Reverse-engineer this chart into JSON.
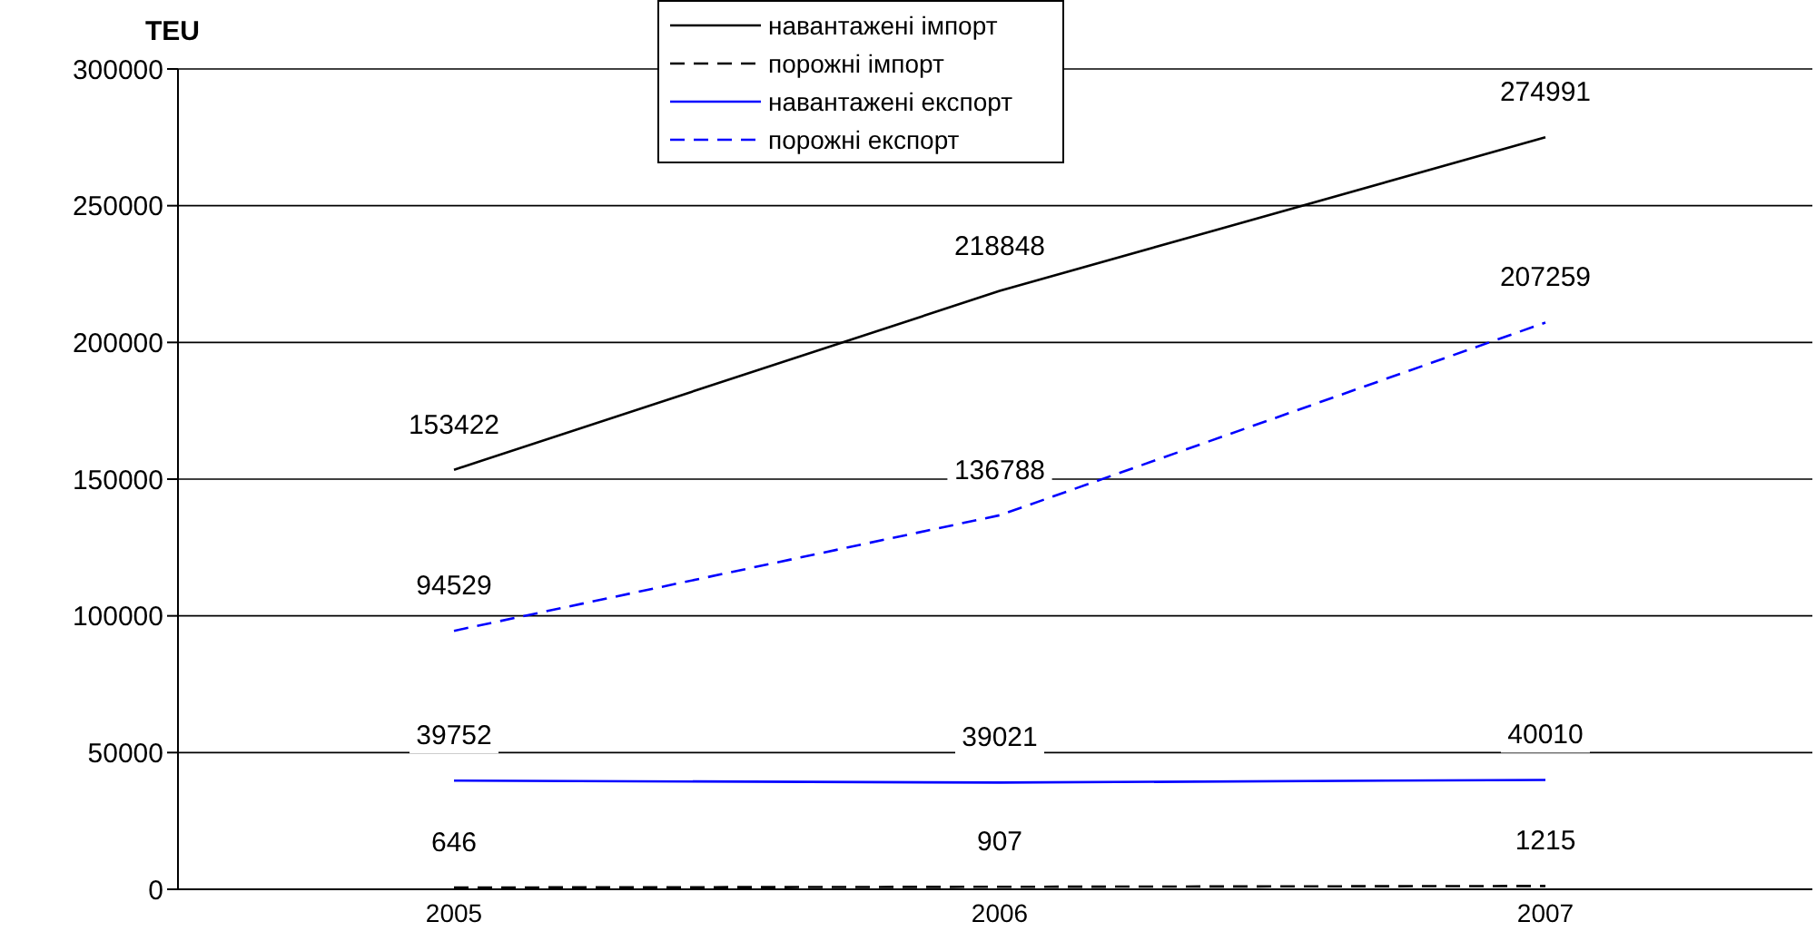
{
  "chart_data": {
    "type": "line",
    "ylabel": "TEU",
    "categories": [
      "2005",
      "2006",
      "2007"
    ],
    "series": [
      {
        "name": "навантажені імпорт",
        "color": "#000000",
        "line_style": "solid",
        "values": [
          153422,
          218848,
          274991
        ]
      },
      {
        "name": "порожні імпорт",
        "color": "#000000",
        "line_style": "dashed",
        "values": [
          646,
          907,
          1215
        ]
      },
      {
        "name": "навантажені експорт",
        "color": "#0000ff",
        "line_style": "solid",
        "values": [
          39752,
          39021,
          40010
        ]
      },
      {
        "name": "порожні експорт",
        "color": "#0000ff",
        "line_style": "dashed",
        "values": [
          94529,
          136788,
          207259
        ]
      }
    ],
    "ylim": [
      0,
      300000
    ],
    "yticks": [
      0,
      50000,
      100000,
      150000,
      200000,
      250000,
      300000
    ],
    "grid": "y",
    "legend": "top",
    "marker": "none",
    "data_labels": true
  }
}
